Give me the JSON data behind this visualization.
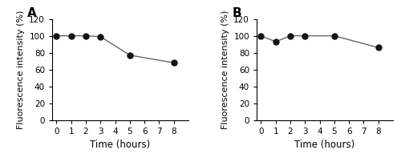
{
  "panel_A": {
    "label": "A",
    "x": [
      0,
      1,
      2,
      3,
      5,
      8
    ],
    "y": [
      100,
      100,
      100,
      99,
      77,
      68
    ],
    "xlabel": "Time (hours)",
    "ylabel": "Fluorescence intensity (%)",
    "xlim": [
      -0.3,
      9
    ],
    "ylim": [
      0,
      120
    ],
    "xticks": [
      0,
      1,
      2,
      3,
      4,
      5,
      6,
      7,
      8
    ],
    "yticks": [
      0,
      20,
      40,
      60,
      80,
      100,
      120
    ]
  },
  "panel_B": {
    "label": "B",
    "x": [
      0,
      1,
      2,
      3,
      5,
      8
    ],
    "y": [
      100,
      93,
      100,
      100,
      100,
      86
    ],
    "xlabel": "Time (hours)",
    "ylabel": "Fluorescence intensity (%)",
    "xlim": [
      -0.3,
      9
    ],
    "ylim": [
      0,
      120
    ],
    "xticks": [
      0,
      1,
      2,
      3,
      4,
      5,
      6,
      7,
      8
    ],
    "yticks": [
      0,
      20,
      40,
      60,
      80,
      100,
      120
    ]
  },
  "line_color": "#666666",
  "marker_color": "#111111",
  "marker_size": 5,
  "line_width": 1.0,
  "tick_fontsize": 7.5,
  "xlabel_fontsize": 8.5,
  "ylabel_fontsize": 8,
  "panel_label_fontsize": 11,
  "background_color": "#ffffff"
}
